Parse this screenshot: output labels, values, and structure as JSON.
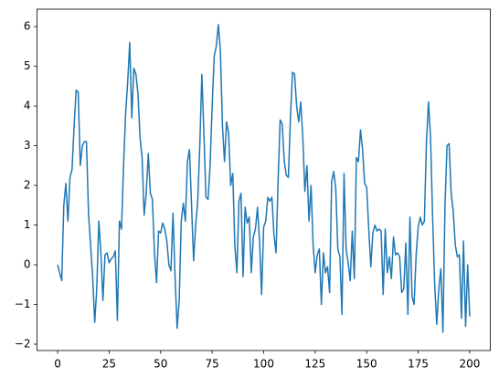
{
  "chart_data": {
    "type": "line",
    "x": [
      0,
      1,
      2,
      3,
      4,
      5,
      6,
      7,
      8,
      9,
      10,
      11,
      12,
      13,
      14,
      15,
      16,
      17,
      18,
      19,
      20,
      21,
      22,
      23,
      24,
      25,
      26,
      27,
      28,
      29,
      30,
      31,
      32,
      33,
      34,
      35,
      36,
      37,
      38,
      39,
      40,
      41,
      42,
      43,
      44,
      45,
      46,
      47,
      48,
      49,
      50,
      51,
      52,
      53,
      54,
      55,
      56,
      57,
      58,
      59,
      60,
      61,
      62,
      63,
      64,
      65,
      66,
      67,
      68,
      69,
      70,
      71,
      72,
      73,
      74,
      75,
      76,
      77,
      78,
      79,
      80,
      81,
      82,
      83,
      84,
      85,
      86,
      87,
      88,
      89,
      90,
      91,
      92,
      93,
      94,
      95,
      96,
      97,
      98,
      99,
      100,
      101,
      102,
      103,
      104,
      105,
      106,
      107,
      108,
      109,
      110,
      111,
      112,
      113,
      114,
      115,
      116,
      117,
      118,
      119,
      120,
      121,
      122,
      123,
      124,
      125,
      126,
      127,
      128,
      129,
      130,
      131,
      132,
      133,
      134,
      135,
      136,
      137,
      138,
      139,
      140,
      141,
      142,
      143,
      144,
      145,
      146,
      147,
      148,
      149,
      150,
      151,
      152,
      153,
      154,
      155,
      156,
      157,
      158,
      159,
      160,
      161,
      162,
      163,
      164,
      165,
      166,
      167,
      168,
      169,
      170,
      171,
      172,
      173,
      174,
      175,
      176,
      177,
      178,
      179,
      180,
      181,
      182,
      183,
      184,
      185,
      186,
      187,
      188,
      189,
      190,
      191,
      192,
      193,
      194,
      195,
      196,
      197,
      198,
      199,
      200
    ],
    "series": [
      {
        "color": "#1f77b4",
        "values": [
          0.0,
          -0.2,
          -0.4,
          1.5,
          2.05,
          1.1,
          2.2,
          2.4,
          3.5,
          4.4,
          4.35,
          2.5,
          3.0,
          3.1,
          3.1,
          1.3,
          0.5,
          -0.3,
          -1.45,
          -0.6,
          1.1,
          0.3,
          -0.9,
          0.25,
          0.3,
          0.05,
          0.15,
          0.2,
          0.35,
          -1.4,
          1.1,
          0.9,
          2.5,
          3.8,
          4.6,
          5.6,
          3.7,
          4.95,
          4.8,
          4.3,
          3.2,
          2.7,
          1.25,
          1.8,
          2.8,
          1.8,
          1.65,
          0.3,
          -0.45,
          0.85,
          0.8,
          1.05,
          0.9,
          0.6,
          0.0,
          -0.15,
          1.3,
          -0.3,
          -1.6,
          -0.9,
          1.1,
          1.55,
          1.1,
          2.6,
          2.9,
          1.5,
          0.1,
          1.0,
          1.6,
          3.0,
          4.8,
          3.3,
          1.7,
          1.65,
          2.5,
          4.0,
          5.25,
          5.5,
          6.05,
          5.4,
          3.5,
          2.6,
          3.6,
          3.3,
          2.0,
          2.3,
          0.5,
          -0.2,
          1.6,
          1.8,
          -0.3,
          1.45,
          1.05,
          1.2,
          -0.2,
          0.7,
          0.9,
          1.45,
          0.6,
          -0.75,
          0.95,
          1.1,
          1.7,
          1.6,
          1.7,
          0.75,
          0.3,
          2.1,
          3.65,
          3.55,
          2.6,
          2.25,
          2.2,
          3.7,
          4.85,
          4.8,
          4.0,
          3.6,
          4.1,
          3.2,
          1.85,
          2.5,
          1.1,
          2.0,
          0.5,
          -0.2,
          0.25,
          0.4,
          -1.0,
          0.3,
          -0.2,
          -0.05,
          -0.7,
          2.1,
          2.35,
          1.9,
          0.4,
          0.2,
          -1.25,
          2.3,
          0.4,
          0.05,
          -0.4,
          0.85,
          -0.35,
          2.7,
          2.6,
          3.4,
          2.9,
          2.05,
          1.95,
          0.9,
          -0.05,
          0.8,
          1.0,
          0.85,
          0.9,
          0.85,
          -0.75,
          0.9,
          -0.2,
          0.2,
          -0.35,
          0.7,
          0.25,
          0.3,
          0.2,
          -0.7,
          -0.6,
          0.55,
          -1.25,
          1.2,
          -0.8,
          -1.0,
          0.25,
          0.95,
          1.2,
          1.0,
          1.1,
          3.1,
          4.1,
          3.2,
          1.2,
          -0.5,
          -1.5,
          -0.6,
          -0.1,
          -1.7,
          1.5,
          3.0,
          3.05,
          1.8,
          1.35,
          0.5,
          0.2,
          0.25,
          -1.35,
          0.6,
          -1.55,
          0.0,
          -1.3
        ]
      }
    ],
    "xlim": [
      -10,
      210
    ],
    "xticks": [
      0,
      25,
      50,
      75,
      100,
      125,
      150,
      175,
      200
    ],
    "ylim": [
      -2.16,
      6.44
    ],
    "yticks": [
      {
        "value": -2,
        "label": "−2"
      },
      {
        "value": -1,
        "label": "−1"
      },
      0,
      1,
      2,
      3,
      4,
      5,
      6
    ]
  }
}
